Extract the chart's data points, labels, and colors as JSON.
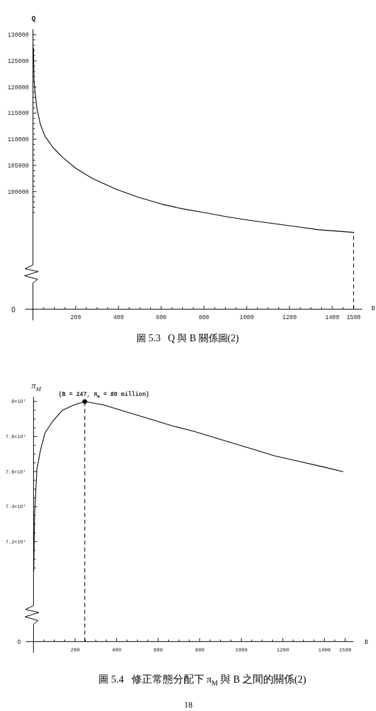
{
  "chart_data": [
    {
      "type": "line",
      "title": "圖 5.3   Q 與 B 關係圖(2)",
      "xlabel": "B",
      "ylabel": "Q",
      "series": [
        {
          "x": [
            2,
            5,
            10,
            18,
            35,
            56,
            94,
            137,
            202,
            278,
            386,
            494,
            602,
            700,
            800,
            905,
            1013,
            1121,
            1229,
            1337,
            1500
          ],
          "values": [
            127500,
            121000,
            118900,
            115900,
            112800,
            110600,
            108400,
            106600,
            104400,
            102500,
            100500,
            98900,
            97600,
            96700,
            96000,
            95200,
            94500,
            93900,
            93300,
            92700,
            92200
          ],
          "color": "#000000"
        }
      ],
      "xlim": [
        -37,
        1540
      ],
      "ylim": [
        77500,
        131000
      ],
      "xticks": [
        {
          "value": 50,
          "label": null
        },
        {
          "value": 100,
          "label": null
        },
        {
          "value": 150,
          "label": null
        },
        200,
        {
          "value": 250,
          "label": null
        },
        {
          "value": 300,
          "label": null
        },
        {
          "value": 350,
          "label": null
        },
        400,
        {
          "value": 450,
          "label": null
        },
        {
          "value": 500,
          "label": null
        },
        {
          "value": 550,
          "label": null
        },
        600,
        {
          "value": 650,
          "label": null
        },
        {
          "value": 700,
          "label": null
        },
        {
          "value": 750,
          "label": null
        },
        800,
        {
          "value": 850,
          "label": null
        },
        {
          "value": 900,
          "label": null
        },
        {
          "value": 950,
          "label": null
        },
        1000,
        {
          "value": 1050,
          "label": null
        },
        {
          "value": 1100,
          "label": null
        },
        {
          "value": 1150,
          "label": null
        },
        1200,
        {
          "value": 1250,
          "label": null
        },
        {
          "value": 1300,
          "label": null
        },
        {
          "value": 1350,
          "label": null
        },
        1400,
        {
          "value": 1450,
          "label": null
        },
        1500
      ],
      "yticks": [
        {
          "value": 96000,
          "label": null
        },
        {
          "value": 97000,
          "label": null
        },
        {
          "value": 98000,
          "label": null
        },
        {
          "value": 99000,
          "label": null
        },
        100000,
        {
          "value": 101000,
          "label": null
        },
        {
          "value": 102000,
          "label": null
        },
        {
          "value": 103000,
          "label": null
        },
        {
          "value": 104000,
          "label": null
        },
        105000,
        {
          "value": 106000,
          "label": null
        },
        {
          "value": 107000,
          "label": null
        },
        {
          "value": 108000,
          "label": null
        },
        {
          "value": 109000,
          "label": null
        },
        110000,
        {
          "value": 111000,
          "label": null
        },
        {
          "value": 112000,
          "label": null
        },
        {
          "value": 113000,
          "label": null
        },
        {
          "value": 114000,
          "label": null
        },
        115000,
        {
          "value": 116000,
          "label": null
        },
        {
          "value": 117000,
          "label": null
        },
        {
          "value": 118000,
          "label": null
        },
        {
          "value": 119000,
          "label": null
        },
        120000,
        {
          "value": 121000,
          "label": null
        },
        {
          "value": 122000,
          "label": null
        },
        {
          "value": 123000,
          "label": null
        },
        {
          "value": 124000,
          "label": null
        },
        125000,
        {
          "value": 126000,
          "label": null
        },
        {
          "value": 127000,
          "label": null
        },
        {
          "value": 128000,
          "label": null
        },
        {
          "value": 129000,
          "label": null
        },
        130000
      ],
      "ref_lines": [
        {
          "axis": "x",
          "value": 1500,
          "line_style": "dashed",
          "color": "#000000"
        }
      ],
      "annotations": [
        "0"
      ]
    },
    {
      "type": "line",
      "title": "圖 5.4   修正常態分配下 π$_{M}$ 與 B 之間的關係(2)",
      "xlabel": "B",
      "ylabel": "π$_{M}$",
      "series": [
        {
          "type": "line",
          "x": [
            1,
            5,
            16,
            33,
            55,
            94,
            139,
            194,
            247,
            339,
            450,
            561,
            672,
            772,
            939,
            1050,
            1161,
            1272,
            1383,
            1490
          ],
          "values": [
            70300000,
            73500000,
            76100000,
            77200000,
            78200000,
            78900000,
            79500000,
            79800000,
            80000000,
            79800000,
            79400000,
            79000000,
            78600000,
            78300000,
            77700000,
            77300000,
            76900000,
            76600000,
            76300000,
            76000000
          ],
          "color": "#000000"
        },
        {
          "type": "scatter",
          "x": [
            247
          ],
          "values": [
            80000000
          ],
          "color": "#000000",
          "marker": "circle"
        }
      ],
      "xlim": [
        -37,
        1540
      ],
      "ylim": [
        66300000,
        80260000
      ],
      "xticks": [
        {
          "value": 50,
          "label": null
        },
        {
          "value": 100,
          "label": null
        },
        {
          "value": 150,
          "label": null
        },
        200,
        {
          "value": 250,
          "label": null
        },
        {
          "value": 300,
          "label": null
        },
        {
          "value": 350,
          "label": null
        },
        400,
        {
          "value": 450,
          "label": null
        },
        {
          "value": 500,
          "label": null
        },
        {
          "value": 550,
          "label": null
        },
        600,
        {
          "value": 650,
          "label": null
        },
        {
          "value": 700,
          "label": null
        },
        {
          "value": 750,
          "label": null
        },
        800,
        {
          "value": 850,
          "label": null
        },
        {
          "value": 900,
          "label": null
        },
        {
          "value": 950,
          "label": null
        },
        1000,
        {
          "value": 1050,
          "label": null
        },
        {
          "value": 1100,
          "label": null
        },
        {
          "value": 1150,
          "label": null
        },
        1200,
        {
          "value": 1250,
          "label": null
        },
        {
          "value": 1300,
          "label": null
        },
        {
          "value": 1350,
          "label": null
        },
        1400,
        {
          "value": 1450,
          "label": null
        },
        1500
      ],
      "yticks": [
        {
          "value": 70500000,
          "label": null
        },
        {
          "value": 71000000,
          "label": null
        },
        {
          "value": 71500000,
          "label": null
        },
        {
          "value": 72000000,
          "label": "7.2×10⁷"
        },
        {
          "value": 72500000,
          "label": null
        },
        {
          "value": 73000000,
          "label": null
        },
        {
          "value": 73500000,
          "label": null
        },
        {
          "value": 74000000,
          "label": "7.4×10⁷"
        },
        {
          "value": 74500000,
          "label": null
        },
        {
          "value": 75000000,
          "label": null
        },
        {
          "value": 75500000,
          "label": null
        },
        {
          "value": 76000000,
          "label": "7.6×10⁷"
        },
        {
          "value": 76500000,
          "label": null
        },
        {
          "value": 77000000,
          "label": null
        },
        {
          "value": 77500000,
          "label": null
        },
        {
          "value": 78000000,
          "label": "7.8×10⁷"
        },
        {
          "value": 78500000,
          "label": null
        },
        {
          "value": 79000000,
          "label": null
        },
        {
          "value": 79500000,
          "label": null
        },
        {
          "value": 80000000,
          "label": "8×10⁷"
        }
      ],
      "ref_lines": [
        {
          "axis": "x",
          "value": 247,
          "line_style": "dashed",
          "color": "#000000"
        }
      ],
      "annotations": [
        {
          "text": "(B = 247, π$_{M}$ = 80 million)",
          "x": 247,
          "y": 80000000
        },
        "0",
        "18"
      ]
    }
  ]
}
